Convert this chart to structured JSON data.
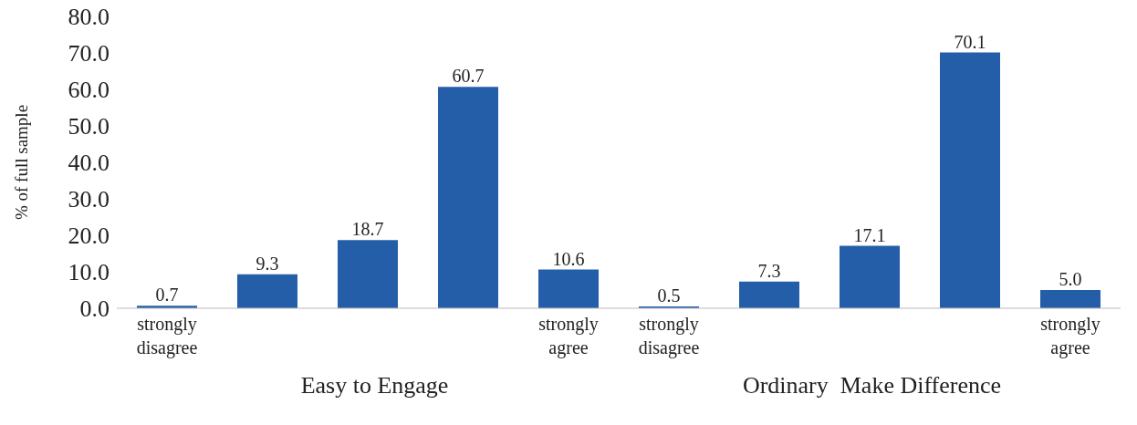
{
  "chart_data": {
    "type": "bar",
    "ylabel": "% of full sample",
    "categories": [
      "strongly disagree",
      null,
      null,
      null,
      "strongly agree",
      "strongly disagree",
      null,
      null,
      null,
      "strongly agree"
    ],
    "values": [
      0.7,
      9.3,
      18.7,
      60.7,
      10.6,
      0.5,
      7.3,
      17.1,
      70.1,
      5.0
    ],
    "color": "#255ea8",
    "ylim": [
      0,
      80
    ],
    "yticks": [
      {
        "value": 0,
        "label": "0.0"
      },
      {
        "value": 10,
        "label": "10.0"
      },
      {
        "value": 20,
        "label": "20.0"
      },
      {
        "value": 30,
        "label": "30.0"
      },
      {
        "value": 40,
        "label": "40.0"
      },
      {
        "value": 50,
        "label": "50.0"
      },
      {
        "value": 60,
        "label": "60.0"
      },
      {
        "value": 70,
        "label": "70.0"
      },
      {
        "value": 80,
        "label": "80.0"
      }
    ],
    "value_labels": [
      "0.7",
      "9.3",
      "18.7",
      "60.7",
      "10.6",
      "0.5",
      "7.3",
      "17.1",
      "70.1",
      "5.0"
    ],
    "grid": false,
    "annotations": [
      "Easy to Engage",
      "Ordinary  Make Difference"
    ]
  }
}
